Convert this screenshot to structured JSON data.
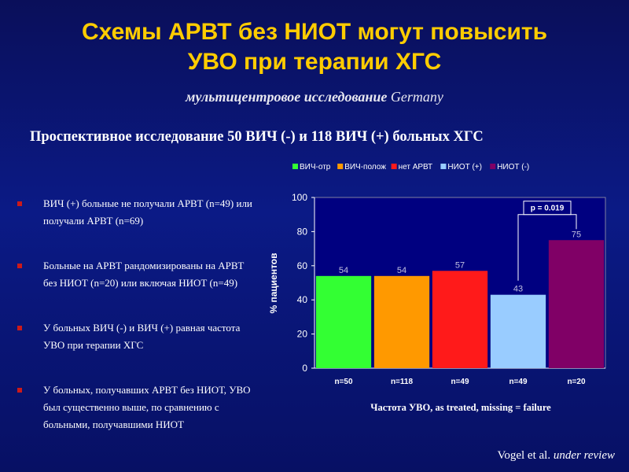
{
  "slide": {
    "title_line1": "Схемы АРВТ без НИОТ могут повысить",
    "title_line2": "УВО при терапии ХГС",
    "subtitle_text": "мультицентровое исследование",
    "subtitle_country": "Germany",
    "study_line": "Проспективное исследование 50 ВИЧ (-) и 118  ВИЧ (+) больных ХГС",
    "bullets": [
      "ВИЧ (+) больные не получали АРВТ (n=49)  или получали АРВТ (n=69)",
      "Больные на АРВТ рандомизированы на АРВТ без НИОТ (n=20)  или включая НИОТ (n=49)",
      "У больных ВИЧ (-) и ВИЧ (+) равная частота УВО при терапии ХГС",
      "У больных, получавших АРВТ без НИОТ, УВО был существенно выше, по сравнению с больными, получавшими НИОТ"
    ],
    "footer_author": "Vogel et al.",
    "footer_status": "under review"
  },
  "chart_data": {
    "type": "bar",
    "categories": [
      "n=50",
      "n=118",
      "n=49",
      "n=49",
      "n=20"
    ],
    "values": [
      54,
      54,
      57,
      43,
      75
    ],
    "series_names": [
      "ВИЧ-отр",
      "ВИЧ-полож",
      "нет АРВТ",
      "НИОТ (+)",
      "НИОТ (-)"
    ],
    "colors": [
      "#33ff33",
      "#ff9900",
      "#ff1a1a",
      "#99ccff",
      "#800066"
    ],
    "ylabel": "% пациентов",
    "xlabel": "Частота УВО, as treated, missing = failure",
    "ylim": [
      0,
      100
    ],
    "yticks": [
      0,
      20,
      40,
      60,
      80,
      100
    ],
    "legend_position": "top",
    "annotation": "p = 0.019",
    "plot_background": "#000080"
  }
}
